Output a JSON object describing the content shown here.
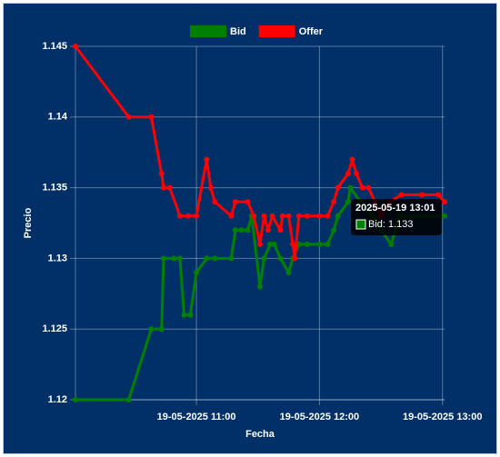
{
  "chart_data": {
    "type": "line",
    "x_label": "Fecha",
    "y_label": "Precio",
    "xlim": [
      "2025-05-19 10:01",
      "2025-05-19 13:01"
    ],
    "xticks": [
      {
        "value": "2025-05-19 11:00",
        "label": "19-05-2025 11:00"
      },
      {
        "value": "2025-05-19 12:00",
        "label": "19-05-2025 12:00"
      },
      {
        "value": "2025-05-19 13:00",
        "label": "19-05-2025 13:00"
      }
    ],
    "ylim": [
      1.12,
      1.145
    ],
    "yticks": [
      1.12,
      1.125,
      1.13,
      1.135,
      1.14,
      1.145
    ],
    "grid": true,
    "legend": "top",
    "series": [
      {
        "name": "Bid",
        "color": "#008000",
        "x": [
          "2025-05-19 10:01",
          "2025-05-19 10:27",
          "2025-05-19 10:38",
          "2025-05-19 10:43",
          "2025-05-19 10:44",
          "2025-05-19 10:49",
          "2025-05-19 10:52",
          "2025-05-19 10:54",
          "2025-05-19 10:57",
          "2025-05-19 11:00",
          "2025-05-19 11:05",
          "2025-05-19 11:09",
          "2025-05-19 11:17",
          "2025-05-19 11:19",
          "2025-05-19 11:22",
          "2025-05-19 11:25",
          "2025-05-19 11:27",
          "2025-05-19 11:31",
          "2025-05-19 11:33",
          "2025-05-19 11:36",
          "2025-05-19 11:38",
          "2025-05-19 11:41",
          "2025-05-19 11:45",
          "2025-05-19 11:47",
          "2025-05-19 11:50",
          "2025-05-19 11:54",
          "2025-05-19 12:00",
          "2025-05-19 12:04",
          "2025-05-19 12:07",
          "2025-05-19 12:09",
          "2025-05-19 12:14",
          "2025-05-19 12:15",
          "2025-05-19 12:20",
          "2025-05-19 12:26",
          "2025-05-19 12:30",
          "2025-05-19 12:35",
          "2025-05-19 12:39",
          "2025-05-19 12:52",
          "2025-05-19 13:01"
        ],
        "values": [
          1.12,
          1.12,
          1.125,
          1.125,
          1.13,
          1.13,
          1.13,
          1.126,
          1.126,
          1.129,
          1.13,
          1.13,
          1.13,
          1.132,
          1.132,
          1.132,
          1.133,
          1.128,
          1.13,
          1.131,
          1.131,
          1.13,
          1.129,
          1.13,
          1.131,
          1.131,
          1.131,
          1.131,
          1.132,
          1.133,
          1.134,
          1.135,
          1.134,
          1.133,
          1.132,
          1.131,
          1.133,
          1.133,
          1.133
        ]
      },
      {
        "name": "Offer",
        "color": "#ff0000",
        "x": [
          "2025-05-19 10:01",
          "2025-05-19 10:27",
          "2025-05-19 10:38",
          "2025-05-19 10:43",
          "2025-05-19 10:44",
          "2025-05-19 10:47",
          "2025-05-19 10:52",
          "2025-05-19 10:56",
          "2025-05-19 11:00",
          "2025-05-19 11:05",
          "2025-05-19 11:07",
          "2025-05-19 11:09",
          "2025-05-19 11:17",
          "2025-05-19 11:19",
          "2025-05-19 11:25",
          "2025-05-19 11:28",
          "2025-05-19 11:31",
          "2025-05-19 11:33",
          "2025-05-19 11:35",
          "2025-05-19 11:37",
          "2025-05-19 11:41",
          "2025-05-19 11:42",
          "2025-05-19 11:45",
          "2025-05-19 11:47",
          "2025-05-19 11:48",
          "2025-05-19 11:50",
          "2025-05-19 11:54",
          "2025-05-19 12:00",
          "2025-05-19 12:04",
          "2025-05-19 12:07",
          "2025-05-19 12:09",
          "2025-05-19 12:14",
          "2025-05-19 12:16",
          "2025-05-19 12:18",
          "2025-05-19 12:21",
          "2025-05-19 12:24",
          "2025-05-19 12:27",
          "2025-05-19 12:30",
          "2025-05-19 12:34",
          "2025-05-19 12:40",
          "2025-05-19 12:50",
          "2025-05-19 12:58",
          "2025-05-19 13:01"
        ],
        "values": [
          1.145,
          1.14,
          1.14,
          1.136,
          1.135,
          1.135,
          1.133,
          1.133,
          1.133,
          1.137,
          1.135,
          1.134,
          1.133,
          1.134,
          1.134,
          1.133,
          1.131,
          1.133,
          1.132,
          1.133,
          1.132,
          1.133,
          1.133,
          1.131,
          1.13,
          1.133,
          1.133,
          1.133,
          1.133,
          1.134,
          1.135,
          1.136,
          1.137,
          1.136,
          1.135,
          1.135,
          1.134,
          1.133,
          1.134,
          1.1345,
          1.1345,
          1.1345,
          1.134
        ]
      }
    ],
    "tooltip": {
      "title": "2025-05-19 13:01",
      "body": "Bid: 1.133"
    }
  }
}
